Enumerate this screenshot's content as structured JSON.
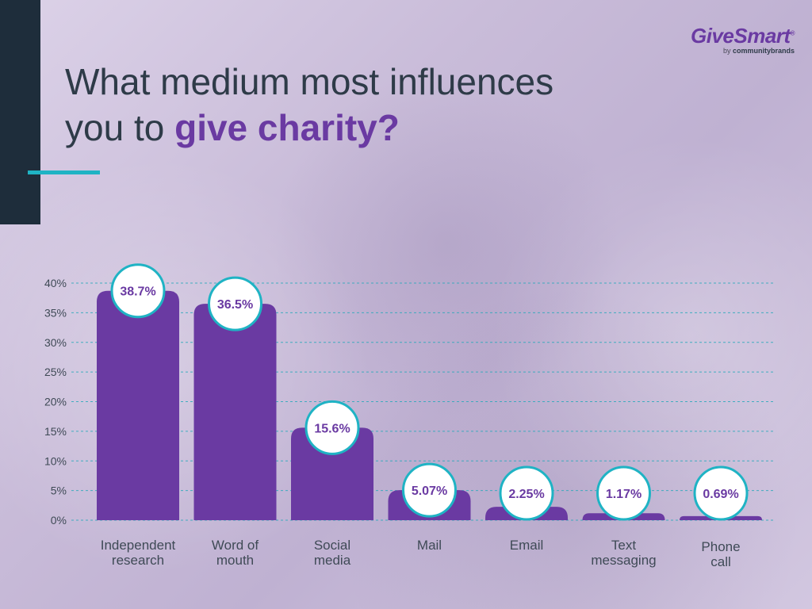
{
  "header": {
    "title_line1": "What medium most influences",
    "title_line2_prefix": "you to ",
    "title_highlight": "give charity?"
  },
  "logo": {
    "brand": "GiveSmart",
    "registered": "®",
    "by": "by ",
    "parent": "communitybrands"
  },
  "colors": {
    "bar": "#6a3aa2",
    "label_text": "#6a3aa2",
    "circle_border": "#1fb3c4",
    "grid": "#29a9bb",
    "axis_text": "#3f4a56",
    "accent_dark": "#1e2d3b",
    "accent_teal": "#1fb3c4"
  },
  "chart_data": {
    "type": "bar",
    "title": "What medium most influences you to give charity?",
    "categories": [
      [
        "Independent",
        "research"
      ],
      [
        "Word of",
        "mouth"
      ],
      [
        "Social",
        "media"
      ],
      [
        "Mail"
      ],
      [
        "Email"
      ],
      [
        "Text",
        "messaging"
      ],
      [
        "Phone",
        "call"
      ]
    ],
    "values": [
      38.7,
      36.5,
      15.6,
      5.07,
      2.25,
      1.17,
      0.69
    ],
    "value_labels": [
      "38.7%",
      "36.5%",
      "15.6%",
      "5.07%",
      "2.25%",
      "1.17%",
      "0.69%"
    ],
    "ylim": [
      0,
      40
    ],
    "yticks": [
      0,
      5,
      10,
      15,
      20,
      25,
      30,
      35,
      40
    ],
    "ytick_labels": [
      "0%",
      "5%",
      "10%",
      "15%",
      "20%",
      "25%",
      "30%",
      "35%",
      "40%"
    ],
    "grid": true,
    "xlabel": "",
    "ylabel": ""
  }
}
